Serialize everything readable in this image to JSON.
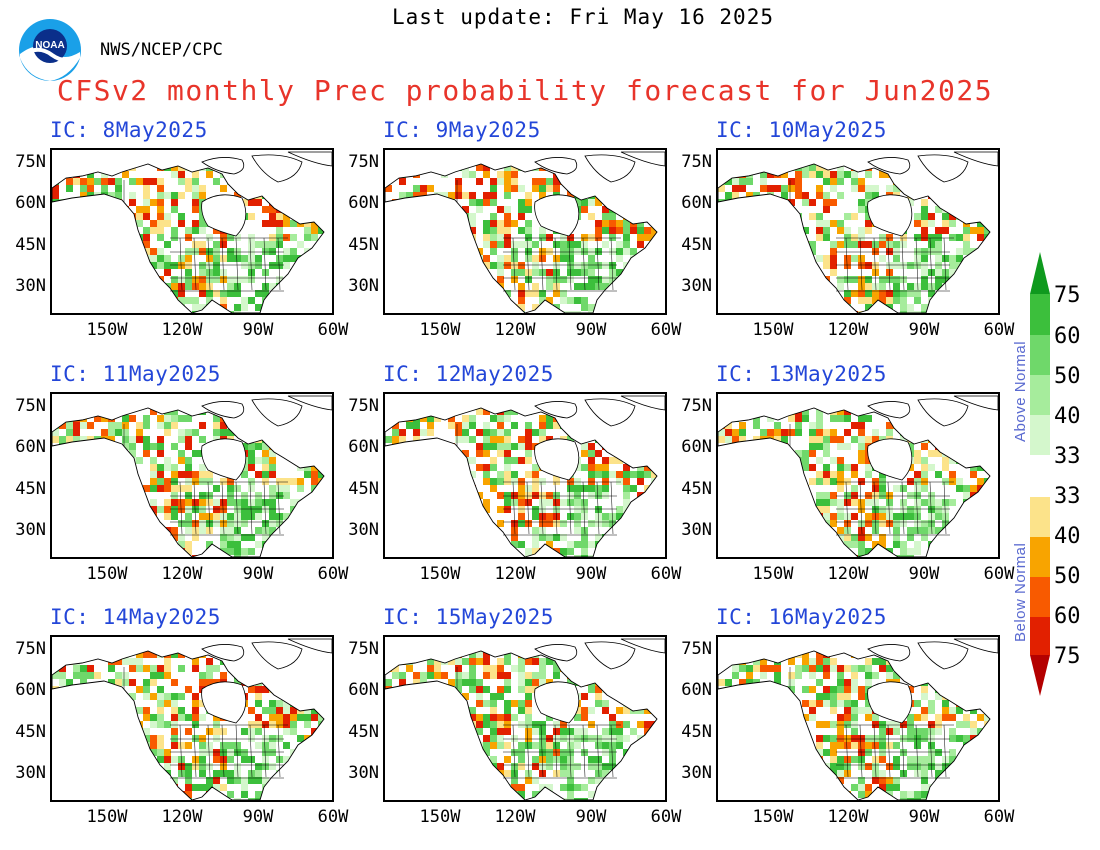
{
  "header": {
    "last_update": "Last update: Fri May 16 2025",
    "agency": "NWS/NCEP/CPC",
    "title": "CFSv2 monthly Prec probability forecast for Jun2025",
    "logo_text": "NOAA"
  },
  "panels": [
    {
      "title": "IC: 8May2025",
      "seed": 8
    },
    {
      "title": "IC: 9May2025",
      "seed": 9
    },
    {
      "title": "IC: 10May2025",
      "seed": 10
    },
    {
      "title": "IC: 11May2025",
      "seed": 11
    },
    {
      "title": "IC: 12May2025",
      "seed": 12
    },
    {
      "title": "IC: 13May2025",
      "seed": 13
    },
    {
      "title": "IC: 14May2025",
      "seed": 14
    },
    {
      "title": "IC: 15May2025",
      "seed": 15
    },
    {
      "title": "IC: 16May2025",
      "seed": 16
    }
  ],
  "axes": {
    "lat_ticks": [
      "75N",
      "60N",
      "45N",
      "30N"
    ],
    "lon_ticks": [
      "150W",
      "120W",
      "90W",
      "60W"
    ]
  },
  "colorbar": {
    "above_label": "Above Normal",
    "below_label": "Below Normal",
    "labels": [
      "75",
      "60",
      "50",
      "40",
      "33",
      "33",
      "40",
      "50",
      "60",
      "75"
    ],
    "above_colors": [
      "#0f9a1e",
      "#3cbf3c",
      "#6fd86a",
      "#a6ec9c",
      "#d4f7cc"
    ],
    "below_colors": [
      "#fce38a",
      "#f8a400",
      "#f85a00",
      "#e22000",
      "#b40000"
    ]
  }
}
